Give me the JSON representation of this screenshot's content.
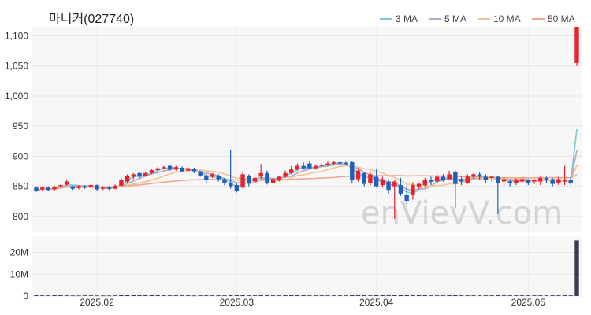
{
  "chart_data": {
    "type": "candlestick",
    "title": "마니커(027740)",
    "watermark": "enVievV.com",
    "legend": [
      {
        "label": "3 MA",
        "color": "#7ec8d0"
      },
      {
        "label": "5 MA",
        "color": "#b7a4c8"
      },
      {
        "label": "10 MA",
        "color": "#f3c48e"
      },
      {
        "label": "50 MA",
        "color": "#f2a890"
      }
    ],
    "up_color": "#e8222a",
    "down_color": "#1f5fbf",
    "price_ylim": [
      775,
      1115
    ],
    "price_ticks": [
      800,
      850,
      900,
      950,
      1000,
      1050,
      1100
    ],
    "price_tick_labels": [
      "800",
      "850",
      "900",
      "950",
      "1,000",
      "1,050",
      "1,100"
    ],
    "volume_ylim": [
      0,
      26
    ],
    "volume_ticks": [
      0,
      10,
      20
    ],
    "volume_tick_labels": [
      "0",
      "10M",
      "20M"
    ],
    "x_tick_labels": [
      {
        "label": "2025.02",
        "index": 10
      },
      {
        "label": "2025.03",
        "index": 33
      },
      {
        "label": "2025.04",
        "index": 56
      },
      {
        "label": "2025.05",
        "index": 81
      }
    ],
    "candles": [
      [
        848,
        843,
        850,
        841
      ],
      [
        845,
        848,
        850,
        843
      ],
      [
        848,
        844,
        850,
        842
      ],
      [
        845,
        849,
        851,
        843
      ],
      [
        850,
        852,
        853,
        848
      ],
      [
        853,
        858,
        860,
        851
      ],
      [
        850,
        846,
        851,
        844
      ],
      [
        847,
        850,
        852,
        845
      ],
      [
        850,
        848,
        852,
        846
      ],
      [
        849,
        852,
        854,
        847
      ],
      [
        852,
        845,
        853,
        842
      ],
      [
        846,
        848,
        850,
        844
      ],
      [
        848,
        846,
        850,
        844
      ],
      [
        846,
        851,
        853,
        845
      ],
      [
        851,
        860,
        864,
        850
      ],
      [
        858,
        868,
        870,
        856
      ],
      [
        866,
        870,
        872,
        862
      ],
      [
        872,
        866,
        874,
        864
      ],
      [
        868,
        872,
        874,
        866
      ],
      [
        872,
        877,
        879,
        870
      ],
      [
        877,
        880,
        882,
        875
      ],
      [
        880,
        882,
        884,
        878
      ],
      [
        884,
        878,
        886,
        876
      ],
      [
        878,
        882,
        884,
        876
      ],
      [
        881,
        875,
        883,
        873
      ],
      [
        876,
        880,
        882,
        874
      ],
      [
        879,
        875,
        881,
        872
      ],
      [
        874,
        868,
        876,
        866
      ],
      [
        868,
        860,
        870,
        856
      ],
      [
        866,
        870,
        872,
        864
      ],
      [
        868,
        862,
        870,
        858
      ],
      [
        862,
        855,
        864,
        852
      ],
      [
        855,
        850,
        910,
        846
      ],
      [
        852,
        842,
        855,
        840
      ],
      [
        848,
        870,
        874,
        846
      ],
      [
        868,
        856,
        870,
        850
      ],
      [
        858,
        864,
        870,
        856
      ],
      [
        866,
        872,
        887,
        862
      ],
      [
        872,
        856,
        876,
        853
      ],
      [
        856,
        862,
        865,
        854
      ],
      [
        860,
        866,
        868,
        858
      ],
      [
        866,
        872,
        876,
        864
      ],
      [
        872,
        878,
        884,
        870
      ],
      [
        878,
        884,
        888,
        876
      ],
      [
        884,
        880,
        890,
        878
      ],
      [
        888,
        880,
        892,
        878
      ],
      [
        880,
        884,
        886,
        878
      ],
      [
        884,
        886,
        888,
        882
      ],
      [
        886,
        888,
        891,
        884
      ],
      [
        888,
        890,
        892,
        886
      ],
      [
        890,
        888,
        892,
        886
      ],
      [
        889,
        887,
        891,
        885
      ],
      [
        890,
        860,
        892,
        856
      ],
      [
        862,
        876,
        880,
        858
      ],
      [
        872,
        854,
        874,
        850
      ],
      [
        856,
        870,
        875,
        852
      ],
      [
        866,
        850,
        878,
        848
      ],
      [
        852,
        860,
        866,
        848
      ],
      [
        858,
        844,
        862,
        838
      ],
      [
        850,
        858,
        860,
        796
      ],
      [
        852,
        838,
        864,
        834
      ],
      [
        836,
        826,
        850,
        820
      ],
      [
        836,
        852,
        857,
        828
      ],
      [
        850,
        854,
        856,
        846
      ],
      [
        852,
        860,
        864,
        848
      ],
      [
        860,
        858,
        866,
        852
      ],
      [
        858,
        866,
        870,
        854
      ],
      [
        866,
        860,
        870,
        858
      ],
      [
        862,
        870,
        876,
        860
      ],
      [
        874,
        854,
        876,
        814
      ],
      [
        862,
        858,
        866,
        852
      ],
      [
        856,
        866,
        870,
        854
      ],
      [
        866,
        870,
        872,
        862
      ],
      [
        870,
        866,
        874,
        860
      ],
      [
        866,
        860,
        870,
        856
      ],
      [
        864,
        866,
        868,
        858
      ],
      [
        866,
        856,
        868,
        804
      ],
      [
        858,
        862,
        866,
        850
      ],
      [
        858,
        855,
        862,
        850
      ],
      [
        856,
        860,
        863,
        852
      ],
      [
        858,
        862,
        866,
        855
      ],
      [
        860,
        856,
        862,
        852
      ],
      [
        858,
        860,
        862,
        854
      ],
      [
        858,
        864,
        866,
        852
      ],
      [
        864,
        860,
        866,
        856
      ],
      [
        862,
        854,
        864,
        850
      ],
      [
        855,
        862,
        866,
        852
      ],
      [
        860,
        860,
        884,
        852
      ],
      [
        860,
        855,
        866,
        852
      ],
      [
        1055,
        1120,
        1125,
        1050
      ]
    ],
    "volumes": [
      0.35,
      0.3,
      0.3,
      0.35,
      0.4,
      0.3,
      0.25,
      0.25,
      0.3,
      0.3,
      0.25,
      0.25,
      0.25,
      0.3,
      0.4,
      0.45,
      0.4,
      0.35,
      0.35,
      0.4,
      0.35,
      0.35,
      0.3,
      0.3,
      0.3,
      0.3,
      0.25,
      0.3,
      0.3,
      0.3,
      0.3,
      0.3,
      0.5,
      0.35,
      0.4,
      0.3,
      0.3,
      0.4,
      0.35,
      0.3,
      0.3,
      0.35,
      0.4,
      0.35,
      0.35,
      0.3,
      0.3,
      0.3,
      0.3,
      0.3,
      0.3,
      0.3,
      0.45,
      0.35,
      0.35,
      0.3,
      0.4,
      0.35,
      0.35,
      0.6,
      0.5,
      0.55,
      0.4,
      0.35,
      0.35,
      0.3,
      0.3,
      0.3,
      0.35,
      0.4,
      0.3,
      0.3,
      0.3,
      0.3,
      0.3,
      0.3,
      0.35,
      0.3,
      0.3,
      0.3,
      0.3,
      0.3,
      0.3,
      0.3,
      0.3,
      0.3,
      0.3,
      0.35,
      0.3,
      25.5
    ]
  }
}
